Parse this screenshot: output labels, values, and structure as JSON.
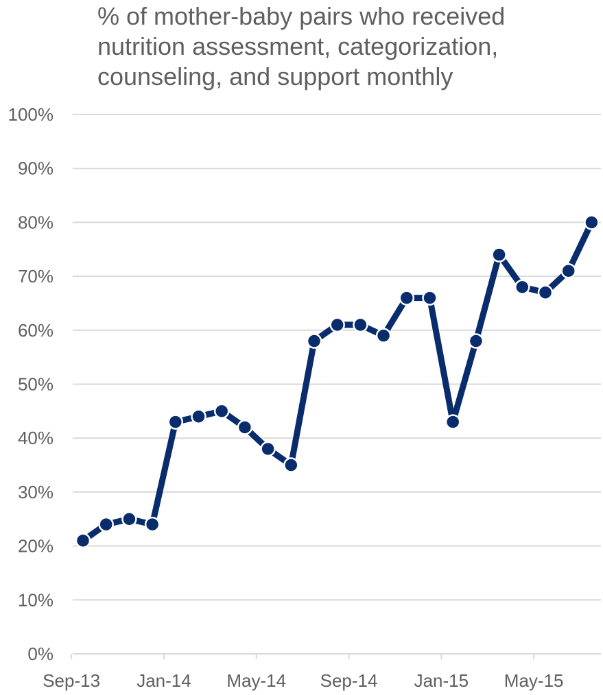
{
  "chart_data": {
    "type": "line",
    "title_lines": [
      "% of mother-baby pairs who received",
      "nutrition assessment, categorization,",
      "counseling, and support monthly"
    ],
    "xlabel": "",
    "ylabel": "",
    "ylim": [
      0,
      100
    ],
    "y_tick_labels": [
      "0%",
      "10%",
      "20%",
      "30%",
      "40%",
      "50%",
      "60%",
      "70%",
      "80%",
      "90%",
      "100%"
    ],
    "x_tick_labels": [
      "Sep-13",
      "Jan-14",
      "May-14",
      "Sep-14",
      "Jan-15",
      "May-15"
    ],
    "grid": true,
    "legend": false,
    "line_color": "#082c6c",
    "marker_fill": "#082c6c",
    "marker_stroke": "#ffffff",
    "grid_color": "#d9d9d9",
    "categories": [
      "Sep-13",
      "Oct-13",
      "Nov-13",
      "Dec-13",
      "Jan-14",
      "Feb-14",
      "Mar-14",
      "Apr-14",
      "May-14",
      "Jun-14",
      "Jul-14",
      "Aug-14",
      "Sep-14",
      "Oct-14",
      "Nov-14",
      "Dec-14",
      "Jan-15",
      "Feb-15",
      "Mar-15",
      "Apr-15",
      "May-15",
      "Jun-15",
      "Jul-15"
    ],
    "values": [
      21,
      24,
      25,
      24,
      43,
      44,
      45,
      42,
      38,
      35,
      58,
      61,
      61,
      59,
      66,
      66,
      43,
      58,
      74,
      68,
      67,
      71,
      80
    ]
  }
}
